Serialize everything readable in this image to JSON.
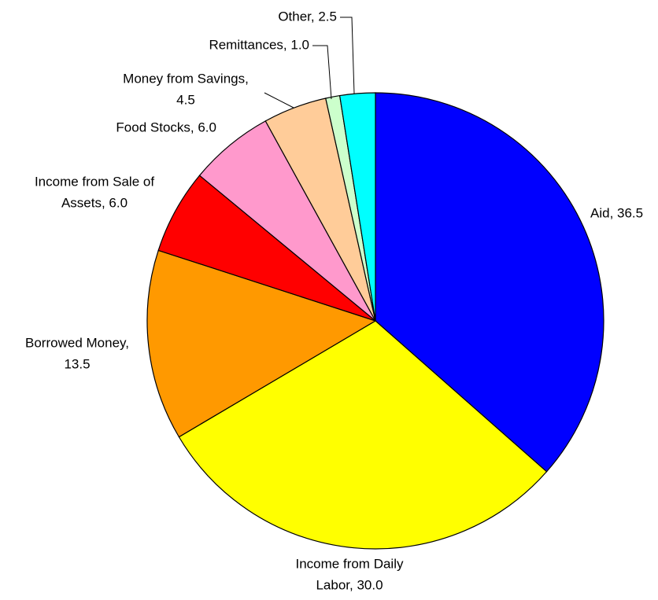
{
  "chart_data": {
    "type": "pie",
    "categories": [
      "Aid",
      "Income from Daily Labor",
      "Borrowed Money",
      "Income from Sale of Assets",
      "Food Stocks",
      "Money from Savings",
      "Remittances",
      "Other"
    ],
    "values": [
      36.5,
      30.0,
      13.5,
      6.0,
      6.0,
      4.5,
      1.0,
      2.5
    ],
    "value_labels": [
      [
        "Aid, 36.5"
      ],
      [
        "Income from Daily",
        "Labor, 30.0"
      ],
      [
        "Borrowed Money,",
        "13.5"
      ],
      [
        "Income from Sale of",
        "Assets, 6.0"
      ],
      [
        "Food Stocks, 6.0"
      ],
      [
        "Money from Savings,",
        "4.5"
      ],
      [
        "Remittances, 1.0"
      ],
      [
        "Other, 2.5"
      ]
    ],
    "colors": [
      "#0000ff",
      "#ffff00",
      "#ff9900",
      "#ff0000",
      "#ff99cc",
      "#ffcc99",
      "#ccffcc",
      "#00ffff"
    ]
  }
}
